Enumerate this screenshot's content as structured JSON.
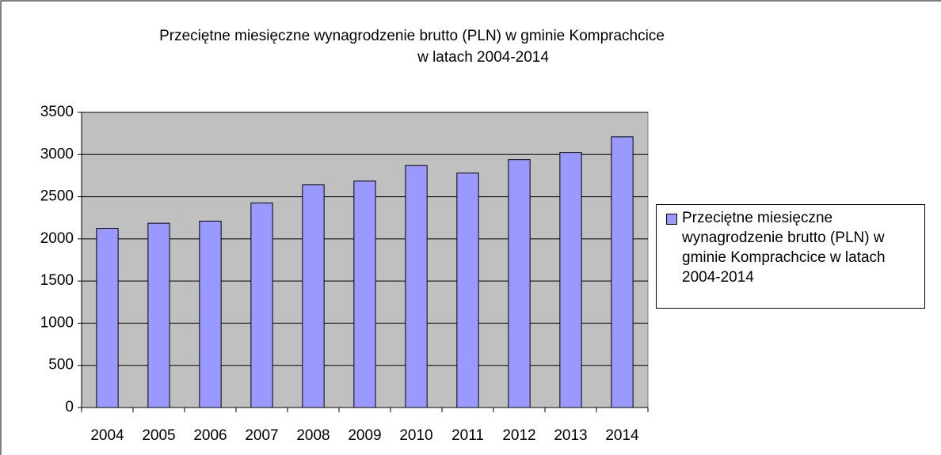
{
  "chart_data": {
    "type": "bar",
    "title": [
      "Przeciętne miesięczne wynagrodzenie brutto (PLN) w gminie Komprachcice",
      "w latach 2004-2014"
    ],
    "categories": [
      "2004",
      "2005",
      "2006",
      "2007",
      "2008",
      "2009",
      "2010",
      "2011",
      "2012",
      "2013",
      "2014"
    ],
    "series": [
      {
        "name": "Przeciętne miesięczne wynagrodzenie brutto (PLN) w gminie Komprachcice w latach 2004-2014",
        "color": "#9999ff",
        "values": [
          2125,
          2185,
          2210,
          2425,
          2640,
          2685,
          2870,
          2780,
          2940,
          3025,
          3210
        ]
      }
    ],
    "ylim": [
      0,
      3500
    ],
    "yticks": [
      0,
      500,
      1000,
      1500,
      2000,
      2500,
      3000,
      3500
    ],
    "grid": true,
    "legend": "right"
  }
}
